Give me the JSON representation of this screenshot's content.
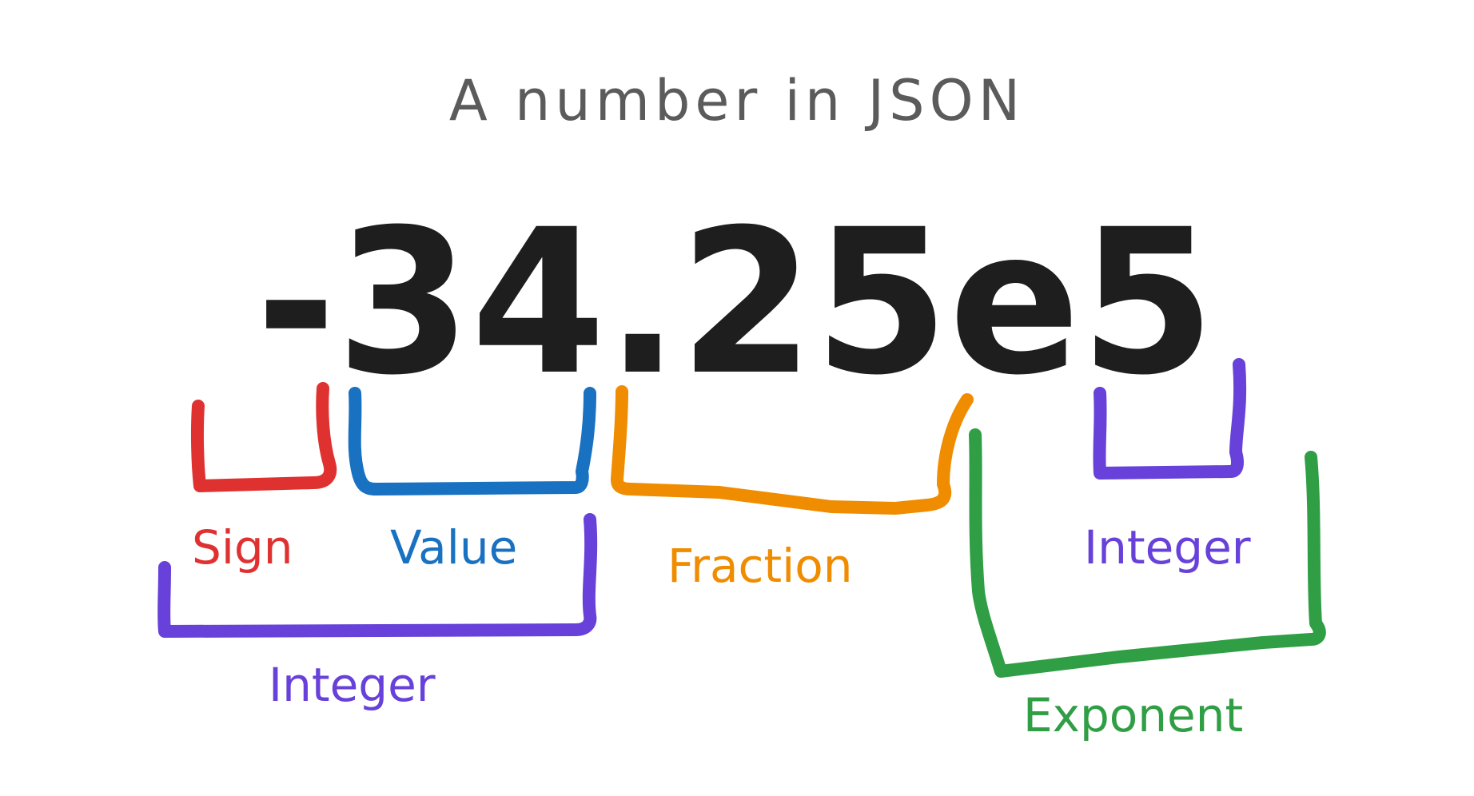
{
  "title": "A number in JSON",
  "number": "-34.25e5",
  "labels": {
    "sign": "Sign",
    "value": "Value",
    "integer": "Integer",
    "fraction": "Fraction",
    "exponent_integer": "Integer",
    "exponent": "Exponent"
  },
  "colors": {
    "sign": "#e03131",
    "value": "#1971c2",
    "integer": "#6741d9",
    "fraction": "#f08c00",
    "exponent": "#2f9e44",
    "title": "#5b5b5b",
    "number": "#1e1e1e"
  }
}
